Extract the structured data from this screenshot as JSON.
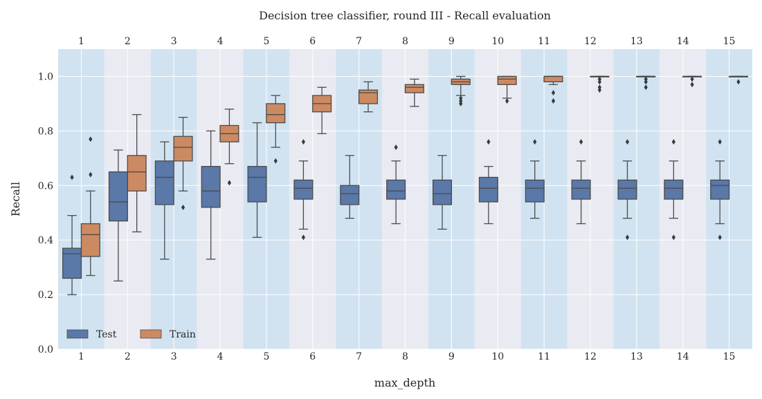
{
  "chart_data": {
    "type": "box",
    "title": "Decision tree classifier, round III - Recall evaluation",
    "xlabel": "max_depth",
    "ylabel": "Recall",
    "ylim": [
      0.0,
      1.1
    ],
    "yticks": [
      "0.0",
      "0.2",
      "0.4",
      "0.6",
      "0.8",
      "1.0"
    ],
    "categories": [
      "1",
      "2",
      "3",
      "4",
      "5",
      "6",
      "7",
      "8",
      "9",
      "10",
      "11",
      "12",
      "13",
      "14",
      "15"
    ],
    "legend": {
      "placement": "lower-left",
      "entries": [
        "Test",
        "Train"
      ]
    },
    "grid": true,
    "colors": {
      "test": "#5a78a8",
      "train": "#cc8a63",
      "band_blue": "#d1e3f1",
      "band_gray": "#eaeaf2",
      "line": "#4a4a4a"
    },
    "series": [
      {
        "name": "Test",
        "boxes": [
          {
            "whislo": 0.2,
            "q1": 0.26,
            "med": 0.35,
            "q3": 0.37,
            "whishi": 0.49,
            "fliers": [
              0.63
            ]
          },
          {
            "whislo": 0.25,
            "q1": 0.47,
            "med": 0.54,
            "q3": 0.65,
            "whishi": 0.73,
            "fliers": []
          },
          {
            "whislo": 0.33,
            "q1": 0.53,
            "med": 0.63,
            "q3": 0.69,
            "whishi": 0.76,
            "fliers": []
          },
          {
            "whislo": 0.33,
            "q1": 0.52,
            "med": 0.58,
            "q3": 0.67,
            "whishi": 0.8,
            "fliers": []
          },
          {
            "whislo": 0.41,
            "q1": 0.54,
            "med": 0.63,
            "q3": 0.67,
            "whishi": 0.83,
            "fliers": []
          },
          {
            "whislo": 0.44,
            "q1": 0.55,
            "med": 0.59,
            "q3": 0.62,
            "whishi": 0.69,
            "fliers": [
              0.41,
              0.76
            ]
          },
          {
            "whislo": 0.48,
            "q1": 0.53,
            "med": 0.57,
            "q3": 0.6,
            "whishi": 0.71,
            "fliers": []
          },
          {
            "whislo": 0.46,
            "q1": 0.55,
            "med": 0.58,
            "q3": 0.62,
            "whishi": 0.69,
            "fliers": [
              0.74
            ]
          },
          {
            "whislo": 0.44,
            "q1": 0.53,
            "med": 0.57,
            "q3": 0.62,
            "whishi": 0.71,
            "fliers": []
          },
          {
            "whislo": 0.46,
            "q1": 0.54,
            "med": 0.59,
            "q3": 0.63,
            "whishi": 0.67,
            "fliers": [
              0.76
            ]
          },
          {
            "whislo": 0.48,
            "q1": 0.54,
            "med": 0.59,
            "q3": 0.62,
            "whishi": 0.69,
            "fliers": [
              0.76
            ]
          },
          {
            "whislo": 0.46,
            "q1": 0.55,
            "med": 0.59,
            "q3": 0.62,
            "whishi": 0.69,
            "fliers": [
              0.76
            ]
          },
          {
            "whislo": 0.48,
            "q1": 0.55,
            "med": 0.59,
            "q3": 0.62,
            "whishi": 0.69,
            "fliers": [
              0.41,
              0.76
            ]
          },
          {
            "whislo": 0.48,
            "q1": 0.55,
            "med": 0.59,
            "q3": 0.62,
            "whishi": 0.69,
            "fliers": [
              0.41,
              0.76
            ]
          },
          {
            "whislo": 0.46,
            "q1": 0.55,
            "med": 0.6,
            "q3": 0.62,
            "whishi": 0.69,
            "fliers": [
              0.41,
              0.76
            ]
          }
        ]
      },
      {
        "name": "Train",
        "boxes": [
          {
            "whislo": 0.27,
            "q1": 0.34,
            "med": 0.42,
            "q3": 0.46,
            "whishi": 0.58,
            "fliers": [
              0.64,
              0.77
            ]
          },
          {
            "whislo": 0.43,
            "q1": 0.58,
            "med": 0.65,
            "q3": 0.71,
            "whishi": 0.86,
            "fliers": []
          },
          {
            "whislo": 0.58,
            "q1": 0.69,
            "med": 0.74,
            "q3": 0.78,
            "whishi": 0.85,
            "fliers": [
              0.52
            ]
          },
          {
            "whislo": 0.68,
            "q1": 0.76,
            "med": 0.79,
            "q3": 0.82,
            "whishi": 0.88,
            "fliers": [
              0.61
            ]
          },
          {
            "whislo": 0.74,
            "q1": 0.83,
            "med": 0.86,
            "q3": 0.9,
            "whishi": 0.93,
            "fliers": [
              0.69
            ]
          },
          {
            "whislo": 0.79,
            "q1": 0.87,
            "med": 0.9,
            "q3": 0.93,
            "whishi": 0.96,
            "fliers": []
          },
          {
            "whislo": 0.87,
            "q1": 0.9,
            "med": 0.94,
            "q3": 0.95,
            "whishi": 0.98,
            "fliers": []
          },
          {
            "whislo": 0.89,
            "q1": 0.94,
            "med": 0.96,
            "q3": 0.97,
            "whishi": 0.99,
            "fliers": []
          },
          {
            "whislo": 0.93,
            "q1": 0.97,
            "med": 0.98,
            "q3": 0.99,
            "whishi": 1.0,
            "fliers": [
              0.9,
              0.91,
              0.92
            ]
          },
          {
            "whislo": 0.92,
            "q1": 0.97,
            "med": 0.99,
            "q3": 1.0,
            "whishi": 1.0,
            "fliers": [
              0.91
            ]
          },
          {
            "whislo": 0.97,
            "q1": 0.98,
            "med": 1.0,
            "q3": 1.0,
            "whishi": 1.0,
            "fliers": [
              0.91,
              0.94
            ]
          },
          {
            "whislo": 1.0,
            "q1": 1.0,
            "med": 1.0,
            "q3": 1.0,
            "whishi": 1.0,
            "fliers": [
              0.95,
              0.96,
              0.98,
              0.99
            ]
          },
          {
            "whislo": 1.0,
            "q1": 1.0,
            "med": 1.0,
            "q3": 1.0,
            "whishi": 1.0,
            "fliers": [
              0.96,
              0.98,
              0.99
            ]
          },
          {
            "whislo": 1.0,
            "q1": 1.0,
            "med": 1.0,
            "q3": 1.0,
            "whishi": 1.0,
            "fliers": [
              0.97,
              0.99
            ]
          },
          {
            "whislo": 1.0,
            "q1": 1.0,
            "med": 1.0,
            "q3": 1.0,
            "whishi": 1.0,
            "fliers": [
              0.98
            ]
          }
        ]
      }
    ]
  }
}
